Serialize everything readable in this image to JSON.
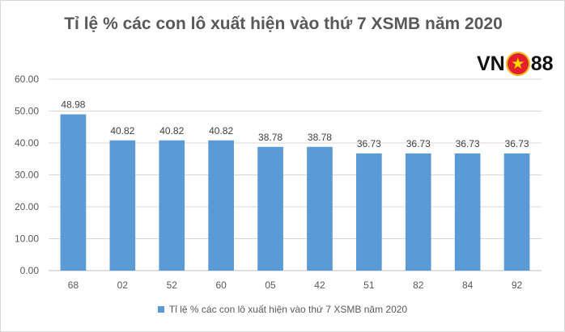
{
  "chart_data": {
    "type": "bar",
    "title": "Tỉ lệ % các con lô xuất hiện vào thứ 7 XSMB năm 2020",
    "categories": [
      "68",
      "02",
      "52",
      "60",
      "05",
      "42",
      "51",
      "82",
      "84",
      "92"
    ],
    "series": [
      {
        "name": "Tỉ lệ % các con lô xuất hiện vào thứ 7 XSMB năm 2020",
        "values": [
          48.98,
          40.82,
          40.82,
          40.82,
          38.78,
          38.78,
          36.73,
          36.73,
          36.73,
          36.73
        ],
        "color": "#5b9bd5"
      }
    ],
    "ylim": [
      0,
      60
    ],
    "yticks": [
      "0.00",
      "10.00",
      "20.00",
      "30.00",
      "40.00",
      "50.00",
      "60.00"
    ],
    "data_labels": [
      "48.98",
      "40.82",
      "40.82",
      "40.82",
      "38.78",
      "38.78",
      "36.73",
      "36.73",
      "36.73",
      "36.73"
    ],
    "grid": true,
    "legend_position": "bottom"
  },
  "logo": {
    "left": "VN",
    "right": "88",
    "icon": "star-icon"
  }
}
